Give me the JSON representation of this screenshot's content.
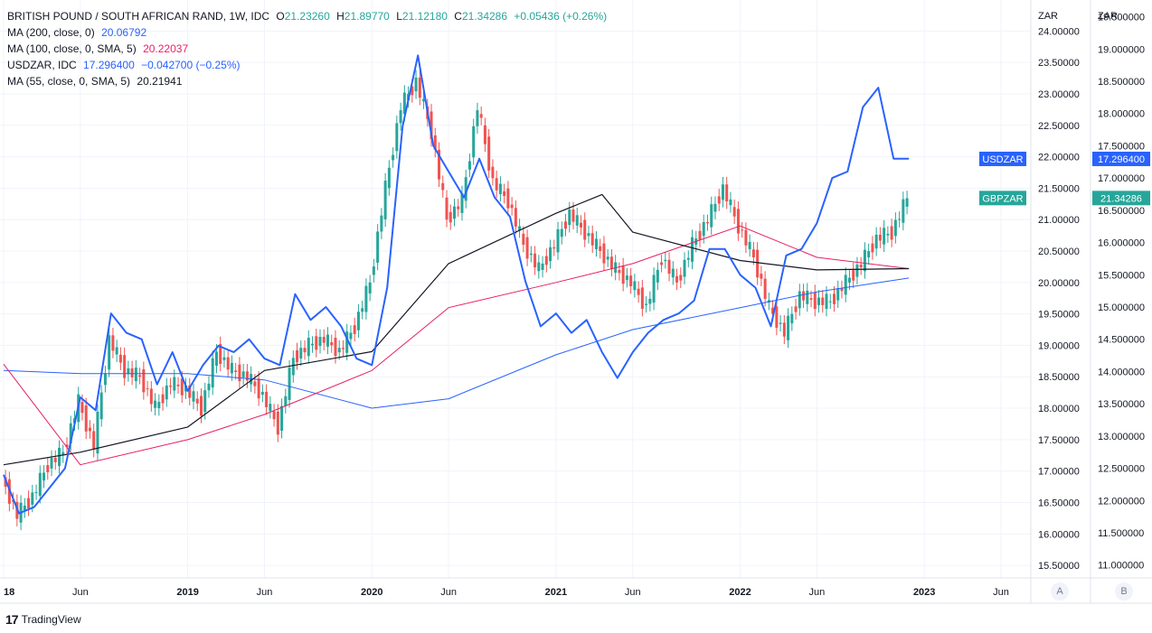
{
  "legend": {
    "main": {
      "symbol": "BRITISH POUND / SOUTH AFRICAN RAND, 1W, IDC",
      "o_label": "O",
      "o_value": "21.23260",
      "h_label": "H",
      "h_value": "21.89770",
      "l_label": "L",
      "l_value": "21.12180",
      "c_label": "C",
      "c_value": "21.34286",
      "change": "+0.05436 (+0.26%)"
    },
    "ma200": {
      "label": "MA (200, close, 0)",
      "value": "20.06792"
    },
    "ma100": {
      "label": "MA (100, close, 0, SMA, 5)",
      "value": "20.22037"
    },
    "usdzar": {
      "label": "USDZAR, IDC",
      "value": "17.296400",
      "change": "−0.042700 (−0.25%)"
    },
    "ma55": {
      "label": "MA (55, close, 0, SMA, 5)",
      "value": "20.21941"
    }
  },
  "colors": {
    "up": "#26a69a",
    "down": "#ef5350",
    "usdzar": "#2962ff",
    "ma200": "#2962ff",
    "ma100": "#e91e63",
    "ma55": "#131722",
    "grid": "#f0f3fa",
    "axis_text": "#131722"
  },
  "chart_data": {
    "type": "candlestick+line",
    "title": "BRITISH POUND / SOUTH AFRICAN RAND, 1W, IDC",
    "axes": {
      "left_scale": {
        "unit": "ZAR",
        "ticks": [
          "24.00000",
          "23.50000",
          "23.00000",
          "22.50000",
          "22.00000",
          "21.50000",
          "21.00000",
          "20.50000",
          "20.00000",
          "19.50000",
          "19.00000",
          "18.50000",
          "18.00000",
          "17.50000",
          "17.00000",
          "16.50000",
          "16.00000",
          "15.50000"
        ],
        "range": [
          15.3,
          24.35
        ]
      },
      "right_scale": {
        "unit": "ZAR",
        "ticks": [
          "19.500000",
          "19.000000",
          "18.500000",
          "18.000000",
          "17.500000",
          "17.000000",
          "16.500000",
          "16.000000",
          "15.500000",
          "15.000000",
          "14.500000",
          "14.000000",
          "13.500000",
          "13.000000",
          "12.500000",
          "12.000000",
          "11.500000",
          "11.000000"
        ],
        "range": [
          10.8,
          19.62
        ]
      },
      "x_ticks": [
        "18",
        "Jun",
        "2019",
        "Jun",
        "2020",
        "Jun",
        "2021",
        "Jun",
        "2022",
        "Jun",
        "2023",
        "Jun"
      ],
      "x_tick_dates": [
        "2018-01",
        "2018-06",
        "2019-01",
        "2019-06",
        "2020-01",
        "2020-06",
        "2021-01",
        "2021-06",
        "2022-01",
        "2022-06",
        "2023-01",
        "2023-06"
      ],
      "x_range": [
        "2018-01",
        "2023-07"
      ]
    },
    "price_labels": [
      {
        "name": "USDZAR",
        "value": "17.296400",
        "color": "#2962ff"
      },
      {
        "name": "GBPZAR",
        "value": "21.34286",
        "color": "#26a69a"
      }
    ],
    "gbpzar_close_by_month": {
      "x": [
        "2018-01",
        "2018-02",
        "2018-03",
        "2018-04",
        "2018-05",
        "2018-06",
        "2018-07",
        "2018-08",
        "2018-09",
        "2018-10",
        "2018-11",
        "2018-12",
        "2019-01",
        "2019-02",
        "2019-03",
        "2019-04",
        "2019-05",
        "2019-06",
        "2019-07",
        "2019-08",
        "2019-09",
        "2019-10",
        "2019-11",
        "2019-12",
        "2020-01",
        "2020-02",
        "2020-03",
        "2020-04",
        "2020-05",
        "2020-06",
        "2020-07",
        "2020-08",
        "2020-09",
        "2020-10",
        "2020-11",
        "2020-12",
        "2021-01",
        "2021-02",
        "2021-03",
        "2021-04",
        "2021-05",
        "2021-06",
        "2021-07",
        "2021-08",
        "2021-09",
        "2021-10",
        "2021-11",
        "2021-12",
        "2022-01",
        "2022-02",
        "2022-03",
        "2022-04",
        "2022-05",
        "2022-06",
        "2022-07",
        "2022-08",
        "2022-09",
        "2022-10",
        "2022-11",
        "2022-12"
      ],
      "y": [
        16.9,
        16.3,
        16.6,
        17.1,
        17.3,
        18.1,
        17.4,
        19.1,
        18.6,
        18.5,
        18.0,
        18.4,
        18.3,
        18.0,
        18.9,
        18.6,
        18.5,
        18.2,
        17.7,
        18.8,
        19.0,
        19.1,
        18.9,
        19.3,
        20.0,
        21.5,
        22.8,
        23.2,
        22.4,
        21.0,
        21.3,
        22.8,
        21.6,
        21.3,
        20.6,
        20.2,
        20.6,
        21.1,
        20.8,
        20.5,
        20.2,
        20.0,
        19.6,
        20.4,
        20.0,
        20.6,
        21.0,
        21.5,
        20.9,
        20.4,
        19.6,
        19.2,
        19.8,
        19.7,
        19.7,
        20.0,
        20.3,
        20.7,
        20.8,
        21.34
      ]
    },
    "usdzar_by_month": {
      "x": [
        "2018-01",
        "2018-02",
        "2018-03",
        "2018-04",
        "2018-05",
        "2018-06",
        "2018-07",
        "2018-08",
        "2018-09",
        "2018-10",
        "2018-11",
        "2018-12",
        "2019-01",
        "2019-02",
        "2019-03",
        "2019-04",
        "2019-05",
        "2019-06",
        "2019-07",
        "2019-08",
        "2019-09",
        "2019-10",
        "2019-11",
        "2019-12",
        "2020-01",
        "2020-02",
        "2020-03",
        "2020-04",
        "2020-05",
        "2020-06",
        "2020-07",
        "2020-08",
        "2020-09",
        "2020-10",
        "2020-11",
        "2020-12",
        "2021-01",
        "2021-02",
        "2021-03",
        "2021-04",
        "2021-05",
        "2021-06",
        "2021-07",
        "2021-08",
        "2021-09",
        "2021-10",
        "2021-11",
        "2021-12",
        "2022-01",
        "2022-02",
        "2022-03",
        "2022-04",
        "2022-05",
        "2022-06",
        "2022-07",
        "2022-08",
        "2022-09",
        "2022-10",
        "2022-11",
        "2022-12"
      ],
      "y": [
        12.4,
        11.8,
        11.9,
        12.2,
        12.5,
        13.6,
        13.4,
        14.9,
        14.6,
        14.5,
        13.8,
        14.3,
        13.7,
        14.1,
        14.4,
        14.3,
        14.5,
        14.2,
        14.1,
        15.2,
        14.8,
        15.0,
        14.7,
        14.2,
        14.1,
        15.3,
        17.8,
        18.9,
        17.5,
        17.1,
        16.7,
        17.3,
        16.7,
        16.4,
        15.4,
        14.7,
        14.9,
        14.6,
        14.8,
        14.3,
        13.9,
        14.3,
        14.6,
        14.8,
        14.9,
        15.1,
        15.9,
        15.9,
        15.5,
        15.3,
        14.7,
        15.8,
        15.9,
        16.3,
        17.0,
        17.1,
        18.1,
        18.4,
        17.3,
        17.3
      ]
    },
    "ma55_by_month": {
      "x": [
        "2018-01",
        "2018-06",
        "2019-01",
        "2019-06",
        "2020-01",
        "2020-06",
        "2021-01",
        "2021-04",
        "2021-06",
        "2022-01",
        "2022-06",
        "2022-12"
      ],
      "y": [
        17.1,
        17.3,
        17.7,
        18.6,
        18.9,
        20.3,
        21.1,
        21.4,
        20.8,
        20.35,
        20.2,
        20.22
      ]
    },
    "ma100_by_month": {
      "x": [
        "2018-01",
        "2018-06",
        "2019-01",
        "2019-06",
        "2020-01",
        "2020-06",
        "2021-01",
        "2021-06",
        "2022-01",
        "2022-06",
        "2022-12"
      ],
      "y": [
        18.7,
        17.1,
        17.5,
        17.9,
        18.6,
        19.6,
        20.0,
        20.3,
        20.9,
        20.4,
        20.22
      ]
    },
    "ma200_by_month": {
      "x": [
        "2018-01",
        "2018-06",
        "2019-01",
        "2019-06",
        "2020-01",
        "2020-06",
        "2021-01",
        "2021-06",
        "2022-01",
        "2022-06",
        "2022-12"
      ],
      "y": [
        18.6,
        18.55,
        18.55,
        18.45,
        18.0,
        18.15,
        18.85,
        19.25,
        19.6,
        19.85,
        20.07
      ]
    }
  }
}
